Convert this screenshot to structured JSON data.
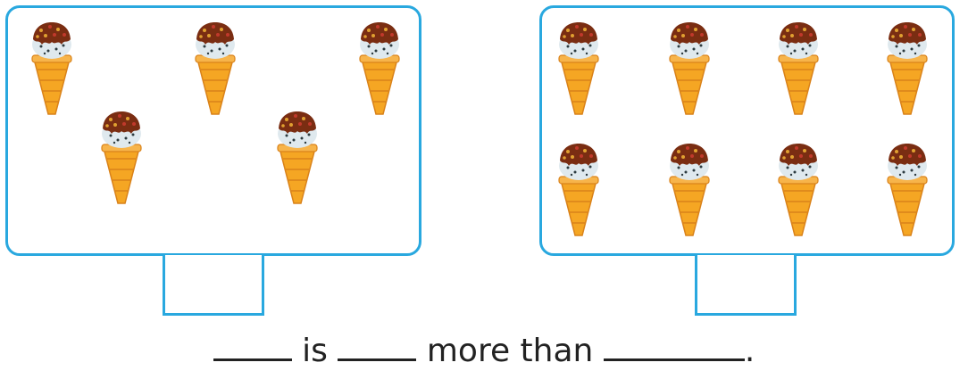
{
  "worksheet": {
    "left_group": {
      "item": "ice-cream-cone",
      "count": 5
    },
    "right_group": {
      "item": "ice-cream-cone",
      "count": 8
    },
    "sentence": {
      "word_is": "is",
      "word_more_than": "more than",
      "period": "."
    }
  },
  "colors": {
    "frame": "#29a8df",
    "cone": "#f5a623",
    "cone_dark": "#d9821a",
    "scoop": "#dfe9ee",
    "topping": "#7a2d12"
  }
}
